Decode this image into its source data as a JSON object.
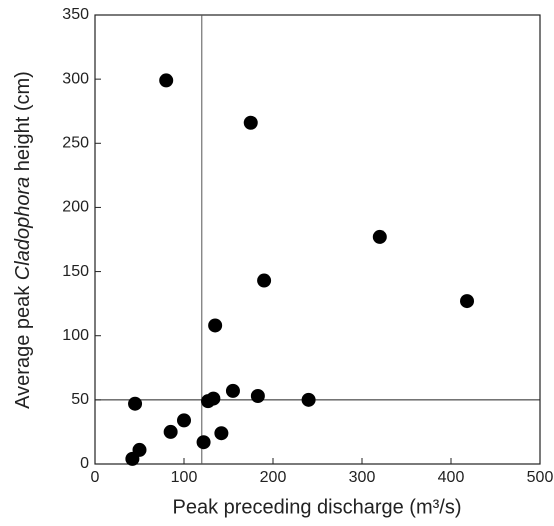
{
  "chart_data": {
    "type": "scatter",
    "x_label": "Peak preceding discharge (m³/s)",
    "y_label_parts": [
      "Average peak ",
      "Cladophora",
      " height (cm)"
    ],
    "x": [
      80,
      175,
      320,
      190,
      418,
      135,
      45,
      42,
      50,
      85,
      100,
      122,
      127,
      133,
      142,
      155,
      183,
      240
    ],
    "values": [
      299,
      266,
      177,
      143,
      127,
      108,
      47,
      4,
      11,
      25,
      34,
      17,
      49,
      51,
      24,
      57,
      53,
      50
    ],
    "color": "#000000",
    "xlim": [
      0,
      500
    ],
    "xticks": [
      0,
      100,
      200,
      300,
      400,
      500
    ],
    "ylim": [
      0,
      350
    ],
    "yticks": [
      0,
      50,
      100,
      150,
      200,
      250,
      300,
      350
    ],
    "vline": 120,
    "hline": 50
  }
}
